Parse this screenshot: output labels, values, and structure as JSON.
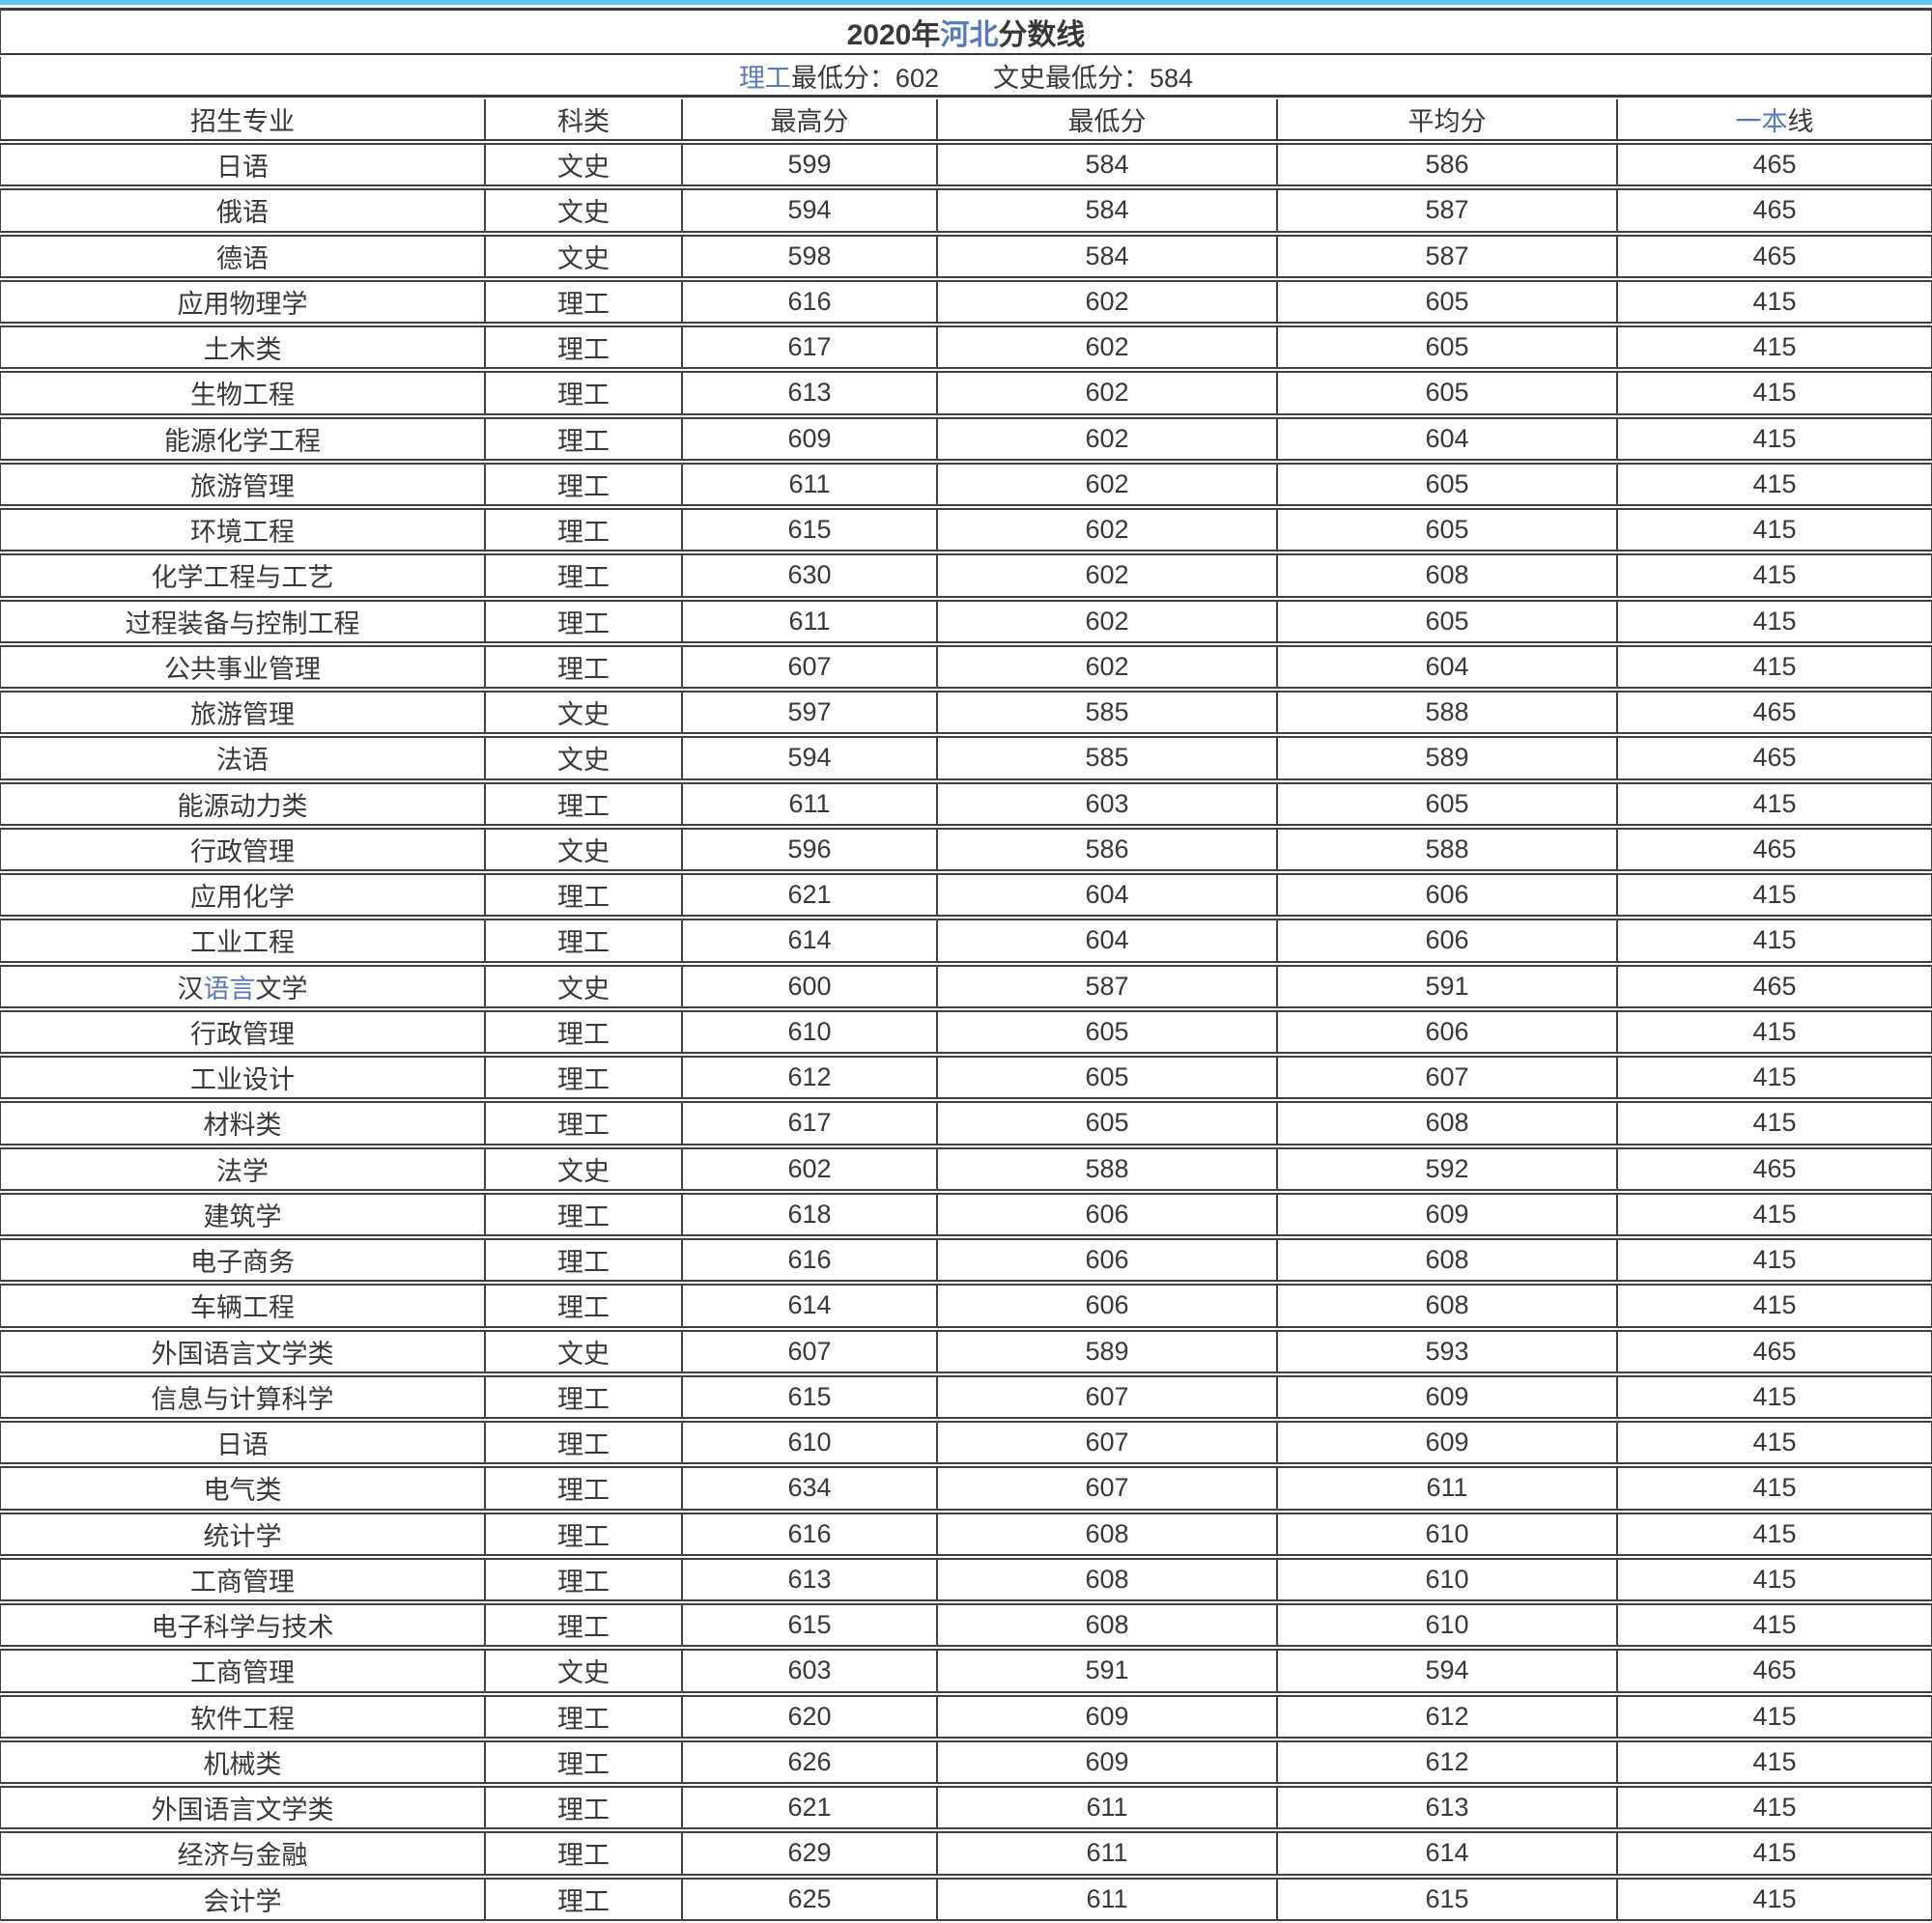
{
  "page": {
    "accent_bar_color": "#5ec9f2",
    "link_color": "#5a7ab6",
    "text_color": "#383838",
    "border_color": "#414141"
  },
  "title": {
    "pre": "2020年",
    "link": "河北",
    "post": "分数线"
  },
  "subtitle": {
    "link": "理工",
    "after_link": "最低分：602",
    "second": "文史最低分：584"
  },
  "table": {
    "header": {
      "cols": [
        "招生专业",
        "科类",
        "最高分",
        "最低分",
        "平均分"
      ],
      "line_col": {
        "link": "一本",
        "rest": "线"
      }
    },
    "rows": [
      {
        "major": "日语",
        "category": "文史",
        "max": "599",
        "min": "584",
        "avg": "586",
        "line": "465"
      },
      {
        "major": "俄语",
        "category": "文史",
        "max": "594",
        "min": "584",
        "avg": "587",
        "line": "465"
      },
      {
        "major": "德语",
        "category": "文史",
        "max": "598",
        "min": "584",
        "avg": "587",
        "line": "465"
      },
      {
        "major": "应用物理学",
        "category": "理工",
        "max": "616",
        "min": "602",
        "avg": "605",
        "line": "415"
      },
      {
        "major": "土木类",
        "category": "理工",
        "max": "617",
        "min": "602",
        "avg": "605",
        "line": "415"
      },
      {
        "major": "生物工程",
        "category": "理工",
        "max": "613",
        "min": "602",
        "avg": "605",
        "line": "415"
      },
      {
        "major": "能源化学工程",
        "category": "理工",
        "max": "609",
        "min": "602",
        "avg": "604",
        "line": "415"
      },
      {
        "major": "旅游管理",
        "category": "理工",
        "max": "611",
        "min": "602",
        "avg": "605",
        "line": "415"
      },
      {
        "major": "环境工程",
        "category": "理工",
        "max": "615",
        "min": "602",
        "avg": "605",
        "line": "415"
      },
      {
        "major": "化学工程与工艺",
        "category": "理工",
        "max": "630",
        "min": "602",
        "avg": "608",
        "line": "415"
      },
      {
        "major": "过程装备与控制工程",
        "category": "理工",
        "max": "611",
        "min": "602",
        "avg": "605",
        "line": "415"
      },
      {
        "major": "公共事业管理",
        "category": "理工",
        "max": "607",
        "min": "602",
        "avg": "604",
        "line": "415"
      },
      {
        "major": "旅游管理",
        "category": "文史",
        "max": "597",
        "min": "585",
        "avg": "588",
        "line": "465"
      },
      {
        "major": "法语",
        "category": "文史",
        "max": "594",
        "min": "585",
        "avg": "589",
        "line": "465"
      },
      {
        "major": "能源动力类",
        "category": "理工",
        "max": "611",
        "min": "603",
        "avg": "605",
        "line": "415"
      },
      {
        "major": "行政管理",
        "category": "文史",
        "max": "596",
        "min": "586",
        "avg": "588",
        "line": "465"
      },
      {
        "major": "应用化学",
        "category": "理工",
        "max": "621",
        "min": "604",
        "avg": "606",
        "line": "415"
      },
      {
        "major": "工业工程",
        "category": "理工",
        "max": "614",
        "min": "604",
        "avg": "606",
        "line": "415"
      },
      {
        "major": "汉语言文学",
        "major_link": "语言",
        "category": "文史",
        "max": "600",
        "min": "587",
        "avg": "591",
        "line": "465"
      },
      {
        "major": "行政管理",
        "category": "理工",
        "max": "610",
        "min": "605",
        "avg": "606",
        "line": "415"
      },
      {
        "major": "工业设计",
        "category": "理工",
        "max": "612",
        "min": "605",
        "avg": "607",
        "line": "415"
      },
      {
        "major": "材料类",
        "category": "理工",
        "max": "617",
        "min": "605",
        "avg": "608",
        "line": "415"
      },
      {
        "major": "法学",
        "category": "文史",
        "max": "602",
        "min": "588",
        "avg": "592",
        "line": "465"
      },
      {
        "major": "建筑学",
        "category": "理工",
        "max": "618",
        "min": "606",
        "avg": "609",
        "line": "415"
      },
      {
        "major": "电子商务",
        "category": "理工",
        "max": "616",
        "min": "606",
        "avg": "608",
        "line": "415"
      },
      {
        "major": "车辆工程",
        "category": "理工",
        "max": "614",
        "min": "606",
        "avg": "608",
        "line": "415"
      },
      {
        "major": "外国语言文学类",
        "category": "文史",
        "max": "607",
        "min": "589",
        "avg": "593",
        "line": "465"
      },
      {
        "major": "信息与计算科学",
        "category": "理工",
        "max": "615",
        "min": "607",
        "avg": "609",
        "line": "415"
      },
      {
        "major": "日语",
        "category": "理工",
        "max": "610",
        "min": "607",
        "avg": "609",
        "line": "415"
      },
      {
        "major": "电气类",
        "category": "理工",
        "max": "634",
        "min": "607",
        "avg": "611",
        "line": "415"
      },
      {
        "major": "统计学",
        "category": "理工",
        "max": "616",
        "min": "608",
        "avg": "610",
        "line": "415"
      },
      {
        "major": "工商管理",
        "category": "理工",
        "max": "613",
        "min": "608",
        "avg": "610",
        "line": "415"
      },
      {
        "major": "电子科学与技术",
        "category": "理工",
        "max": "615",
        "min": "608",
        "avg": "610",
        "line": "415"
      },
      {
        "major": "工商管理",
        "category": "文史",
        "max": "603",
        "min": "591",
        "avg": "594",
        "line": "465"
      },
      {
        "major": "软件工程",
        "category": "理工",
        "max": "620",
        "min": "609",
        "avg": "612",
        "line": "415"
      },
      {
        "major": "机械类",
        "category": "理工",
        "max": "626",
        "min": "609",
        "avg": "612",
        "line": "415"
      },
      {
        "major": "外国语言文学类",
        "category": "理工",
        "max": "621",
        "min": "611",
        "avg": "613",
        "line": "415"
      },
      {
        "major": "经济与金融",
        "category": "理工",
        "max": "629",
        "min": "611",
        "avg": "614",
        "line": "415"
      },
      {
        "major": "会计学",
        "category": "理工",
        "max": "625",
        "min": "611",
        "avg": "615",
        "line": "415"
      }
    ]
  }
}
